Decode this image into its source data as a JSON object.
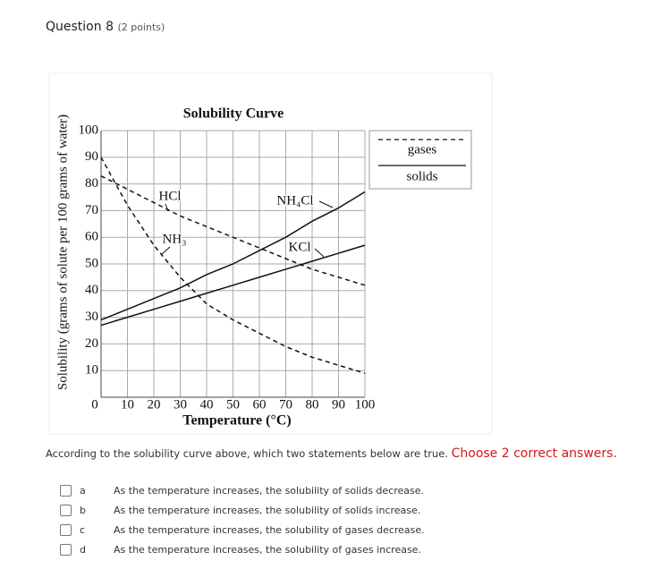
{
  "question": {
    "title": "Question 8",
    "points": "(2 points)"
  },
  "chart_data": {
    "type": "line",
    "title": "Solubility Curve",
    "x_label": "Temperature (°C)",
    "y_label": "Solubility (grams of solute per 100 grams of water)",
    "x": [
      0,
      10,
      20,
      30,
      40,
      50,
      60,
      70,
      80,
      90,
      100
    ],
    "xlim": [
      0,
      100
    ],
    "ylim": [
      0,
      100
    ],
    "xticks": [
      0,
      10,
      20,
      30,
      40,
      50,
      60,
      70,
      80,
      90,
      100
    ],
    "yticks": [
      10,
      20,
      30,
      40,
      50,
      60,
      70,
      80,
      90,
      100
    ],
    "grid": true,
    "legend": [
      {
        "label": "gases",
        "style": "dashed"
      },
      {
        "label": "solids",
        "style": "solid"
      }
    ],
    "series": [
      {
        "name": "HCl",
        "style": "dashed",
        "color": "#111111",
        "values": [
          83,
          78,
          73,
          68,
          64,
          60,
          56,
          52,
          48,
          45,
          42
        ]
      },
      {
        "name": "NH₃",
        "style": "dashed",
        "color": "#111111",
        "values": [
          90,
          72,
          57,
          45,
          35,
          29,
          24,
          19,
          15,
          12,
          9
        ]
      },
      {
        "name": "NH₄Cl",
        "style": "solid",
        "color": "#111111",
        "values": [
          29,
          33,
          37,
          41,
          46,
          50,
          55,
          60,
          66,
          71,
          77
        ]
      },
      {
        "name": "KCl",
        "style": "solid",
        "color": "#111111",
        "values": [
          27,
          30,
          33,
          36,
          39,
          42,
          45,
          48,
          51,
          54,
          57
        ]
      }
    ]
  },
  "prompt": "According to the solubility curve above, which two statements below are true.",
  "instruction": "Choose 2 correct answers.",
  "options": [
    {
      "letter": "a",
      "text": "As the temperature increases, the solubility of solids decrease."
    },
    {
      "letter": "b",
      "text": "As the temperature increases, the solubility of solids increase."
    },
    {
      "letter": "c",
      "text": "As the temperature increases, the solubility of gases decrease."
    },
    {
      "letter": "d",
      "text": "As the temperature increases, the solubility of gases increase."
    }
  ]
}
